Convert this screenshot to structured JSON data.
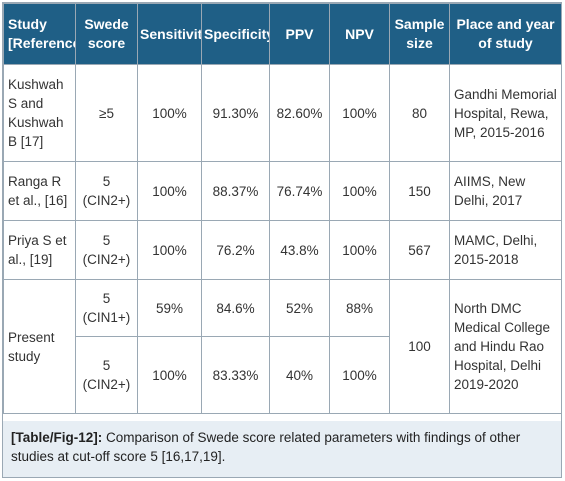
{
  "table": {
    "headers": {
      "study": "Study [Reference]",
      "swede": "Swede score",
      "sensitivity": "Sensitivity",
      "specificity": "Specificity",
      "ppv": "PPV",
      "npv": "NPV",
      "sample": "Sample size",
      "place": "Place and year of study"
    },
    "rows": [
      {
        "study": "Kushwah S and Kushwah B [17]",
        "swede": "≥5",
        "sensitivity": "100%",
        "specificity": "91.30%",
        "ppv": "82.60%",
        "npv": "100%",
        "sample": "80",
        "place": "Gandhi Memorial Hospital, Rewa, MP, 2015-2016"
      },
      {
        "study": "Ranga R et al., [16]",
        "swede": "5 (CIN2+)",
        "sensitivity": "100%",
        "specificity": "88.37%",
        "ppv": "76.74%",
        "npv": "100%",
        "sample": "150",
        "place": "AIIMS, New Delhi, 2017"
      },
      {
        "study": "Priya S et al., [19]",
        "swede": "5 (CIN2+)",
        "sensitivity": "100%",
        "specificity": "76.2%",
        "ppv": "43.8%",
        "npv": "100%",
        "sample": "567",
        "place": "MAMC, Delhi, 2015-2018"
      }
    ],
    "present": {
      "study": "Present study",
      "sample": "100",
      "place": "North DMC Medical College and Hindu Rao Hospital, Delhi 2019-2020",
      "subrows": [
        {
          "swede": "5 (CIN1+)",
          "sensitivity": "59%",
          "specificity": "84.6%",
          "ppv": "52%",
          "npv": "88%"
        },
        {
          "swede": "5 (CIN2+)",
          "sensitivity": "100%",
          "specificity": "83.33%",
          "ppv": "40%",
          "npv": "100%"
        }
      ]
    }
  },
  "caption": {
    "tag": "[Table/Fig-12]:",
    "text": " Comparison of Swede score related parameters with findings of other studies at cut-off score 5 [16,17,19]."
  }
}
